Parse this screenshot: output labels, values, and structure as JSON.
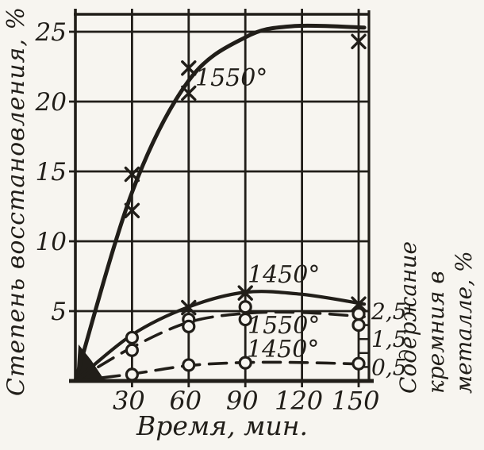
{
  "figure": {
    "kind": "scanned-book-chart",
    "paper_color": "#f7f5f0",
    "ink_color": "#211e19"
  },
  "chart_data": {
    "type": "line",
    "title": "",
    "xlabel": "Время, мин.",
    "x_ticks": [
      30,
      60,
      90,
      120,
      150
    ],
    "x_tick_labels": [
      "30",
      "60",
      "90",
      "120",
      "150"
    ],
    "x_range": [
      0,
      155
    ],
    "grid": true,
    "legend_position": "inline-curve-labels",
    "left_axis": {
      "label": "Степень восстановления, %",
      "ticks": [
        5,
        10,
        15,
        20,
        25
      ],
      "tick_labels": [
        "5",
        "10",
        "15",
        "20",
        "25"
      ],
      "range": [
        0,
        26.3
      ]
    },
    "right_axis": {
      "label": "Содержание кремния в металле, %",
      "label_lines": [
        "Содержание",
        "кремния в",
        "металле, %"
      ],
      "ticks": [
        0.5,
        1.5,
        2.5
      ],
      "tick_labels": [
        "0,5",
        "1,5",
        "2,5"
      ],
      "tick_marks": [
        0.5,
        1.0,
        1.5,
        2.0,
        2.5
      ],
      "range": [
        0,
        13.15
      ],
      "scale_to_left": 2
    },
    "series": [
      {
        "id": "reduction-1550",
        "label": "1550°",
        "axis": "left",
        "line": "solid",
        "marker": "x",
        "curve": [
          [
            0,
            0
          ],
          [
            30,
            13.5
          ],
          [
            60,
            21.5
          ],
          [
            90,
            24.6
          ],
          [
            115,
            25.4
          ],
          [
            153,
            25.3
          ]
        ],
        "marker_points_x": [
          [
            30,
            12.2
          ],
          [
            30,
            14.8
          ],
          [
            60,
            20.6
          ],
          [
            60,
            22.4
          ],
          [
            150,
            24.3
          ]
        ],
        "marker_points_o": []
      },
      {
        "id": "reduction-1450",
        "label": "1450°",
        "axis": "left",
        "line": "solid",
        "marker": "x",
        "curve": [
          [
            0,
            0
          ],
          [
            30,
            3.3
          ],
          [
            60,
            5.3
          ],
          [
            90,
            6.35
          ],
          [
            120,
            6.2
          ],
          [
            153,
            5.5
          ]
        ],
        "marker_points_x": [
          [
            60,
            5.25
          ],
          [
            90,
            6.3
          ],
          [
            150,
            5.5
          ]
        ],
        "marker_points_o": [
          [
            30,
            3.1
          ]
        ]
      },
      {
        "id": "silicon-1550",
        "label": "1550°",
        "axis": "right",
        "line": "dashed",
        "marker": "o",
        "curve": [
          [
            0,
            0
          ],
          [
            30,
            1.2
          ],
          [
            60,
            2.1
          ],
          [
            90,
            2.42
          ],
          [
            120,
            2.45
          ],
          [
            153,
            2.3
          ]
        ],
        "marker_points_x": [],
        "marker_points_o": [
          [
            30,
            1.1
          ],
          [
            60,
            2.2
          ],
          [
            60,
            1.95
          ],
          [
            90,
            2.65
          ],
          [
            90,
            2.2
          ],
          [
            150,
            2.4
          ],
          [
            150,
            2.0
          ]
        ]
      },
      {
        "id": "silicon-1450",
        "label": "1450°",
        "axis": "right",
        "line": "dashed",
        "marker": "o",
        "curve": [
          [
            0,
            0
          ],
          [
            30,
            0.25
          ],
          [
            60,
            0.55
          ],
          [
            90,
            0.66
          ],
          [
            120,
            0.66
          ],
          [
            153,
            0.6
          ]
        ],
        "marker_points_x": [],
        "marker_points_o": [
          [
            30,
            0.23
          ],
          [
            60,
            0.57
          ],
          [
            90,
            0.65
          ],
          [
            150,
            0.62
          ]
        ]
      }
    ]
  }
}
